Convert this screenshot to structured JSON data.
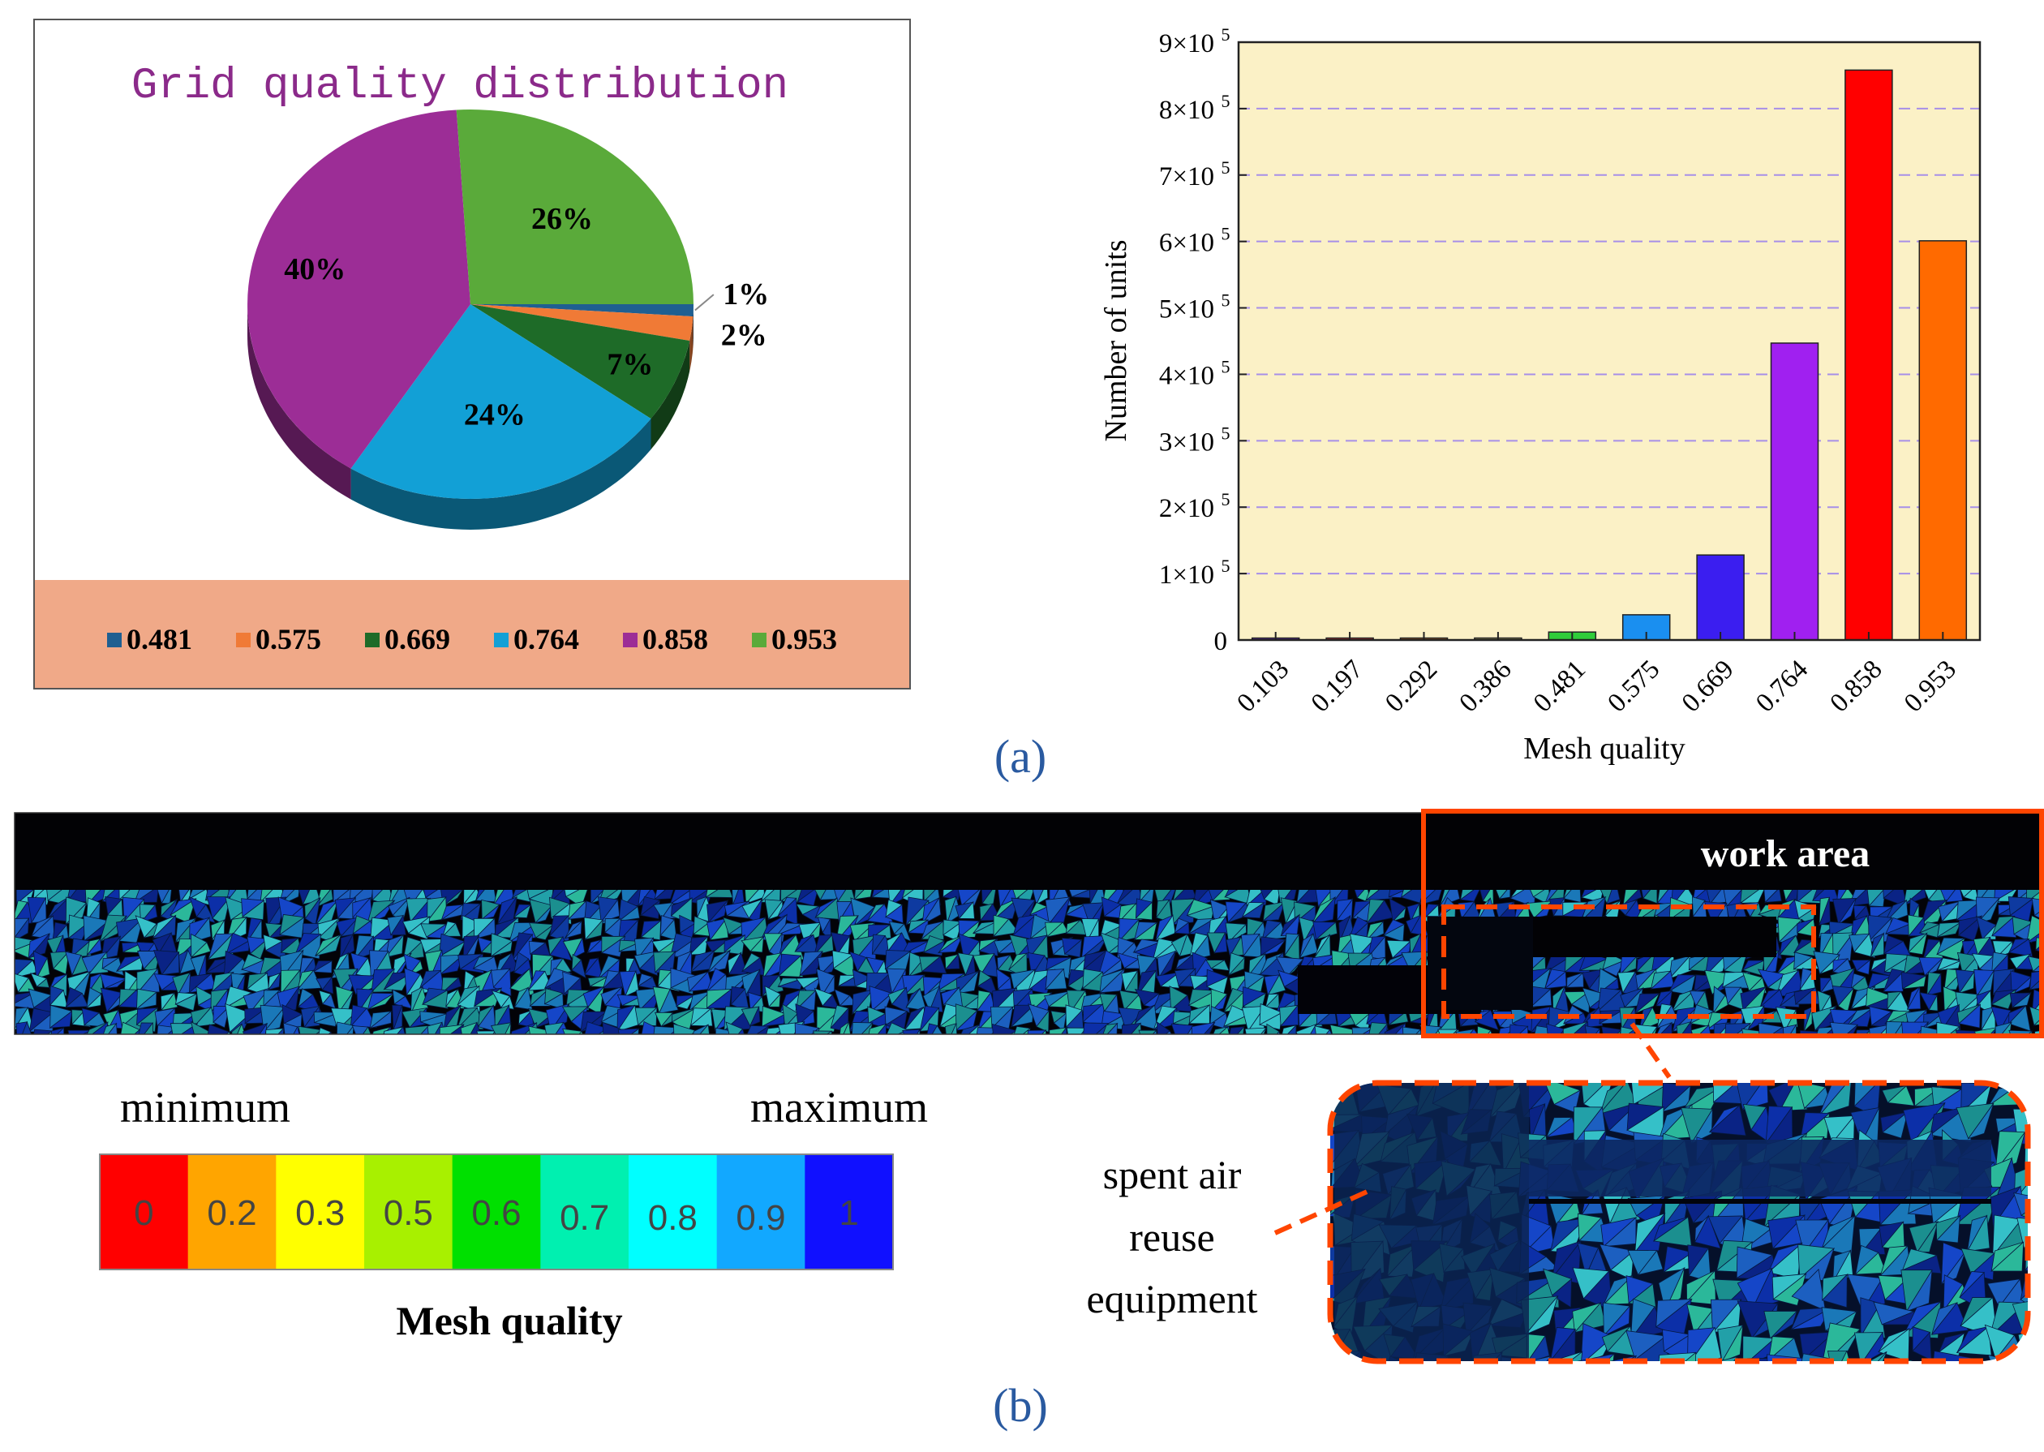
{
  "panel_labels": {
    "a": "(a)",
    "b": "(b)"
  },
  "chart_data": [
    {
      "type": "pie",
      "title": "Grid quality distribution",
      "slices": [
        {
          "label": "0.481",
          "value": 1,
          "text": "1%",
          "color": "#1f5f91"
        },
        {
          "label": "0.575",
          "value": 2,
          "text": "2%",
          "color": "#f07a36"
        },
        {
          "label": "0.669",
          "value": 7,
          "text": "7%",
          "color": "#1e6b28"
        },
        {
          "label": "0.764",
          "value": 24,
          "text": "24%",
          "color": "#12a0d6"
        },
        {
          "label": "0.858",
          "value": 40,
          "text": "40%",
          "color": "#9c2d96"
        },
        {
          "label": "0.953",
          "value": 26,
          "text": "26%",
          "color": "#5aaa3a"
        }
      ],
      "legend_position": "bottom",
      "legend_background": "#f0a988",
      "title_color": "#8b2a8a"
    },
    {
      "type": "bar",
      "categories": [
        "0.103",
        "0.197",
        "0.292",
        "0.386",
        "0.481",
        "0.575",
        "0.669",
        "0.764",
        "0.858",
        "0.953"
      ],
      "values": [
        3000,
        3000,
        3000,
        3000,
        12000,
        38000,
        128000,
        447000,
        858000,
        601000
      ],
      "colors": [
        "#6a2fb8",
        "#cc3a3a",
        "#b06a2a",
        "#a0a060",
        "#2fcc3a",
        "#1a8ff0",
        "#3b1ef0",
        "#a020f0",
        "#ff0000",
        "#ff6a00"
      ],
      "xlabel": "Mesh quality",
      "ylabel": "Number of units",
      "ylim": [
        0,
        900000
      ],
      "yticks": [
        {
          "value": 0,
          "label": "0",
          "exp": ""
        },
        {
          "value": 100000,
          "label": "1×10",
          "exp": "5"
        },
        {
          "value": 200000,
          "label": "2×10",
          "exp": "5"
        },
        {
          "value": 300000,
          "label": "3×10",
          "exp": "5"
        },
        {
          "value": 400000,
          "label": "4×10",
          "exp": "5"
        },
        {
          "value": 500000,
          "label": "5×10",
          "exp": "5"
        },
        {
          "value": 600000,
          "label": "6×10",
          "exp": "5"
        },
        {
          "value": 700000,
          "label": "7×10",
          "exp": "5"
        },
        {
          "value": 800000,
          "label": "8×10",
          "exp": "5"
        },
        {
          "value": 900000,
          "label": "9×10",
          "exp": "5"
        }
      ],
      "grid": "dashed horizontal",
      "plot_background": "#fbf1c6",
      "grid_color": "#a78fe8"
    }
  ],
  "mesh": {
    "work_area_label": "work area",
    "equipment_label": [
      "spent air",
      "reuse",
      "equipment"
    ],
    "scale": {
      "min_label": "minimum",
      "max_label": "maximum",
      "title": "Mesh quality",
      "cells": [
        {
          "text": "0",
          "color": "#ff0000"
        },
        {
          "text": "0.2",
          "color": "#ffa500"
        },
        {
          "text": "0.3",
          "color": "#ffff00"
        },
        {
          "text": "0.5",
          "color": "#a8f000"
        },
        {
          "text": "0.6",
          "color": "#00e000"
        },
        {
          "text": "0.7",
          "color": "#00f0b0"
        },
        {
          "text": "0.8",
          "color": "#00ffff"
        },
        {
          "text": "0.9",
          "color": "#12a8ff"
        },
        {
          "text": "1",
          "color": "#1010ff"
        }
      ]
    },
    "mesh_colors": [
      "#0c2fa8",
      "#1546c8",
      "#0a2385",
      "#1a78b8",
      "#22a0a8",
      "#2bb89a",
      "#1c5fc0",
      "#0e3aa0",
      "#35c0c8",
      "#1b8f8f"
    ],
    "highlight_color": "#ff4500"
  }
}
